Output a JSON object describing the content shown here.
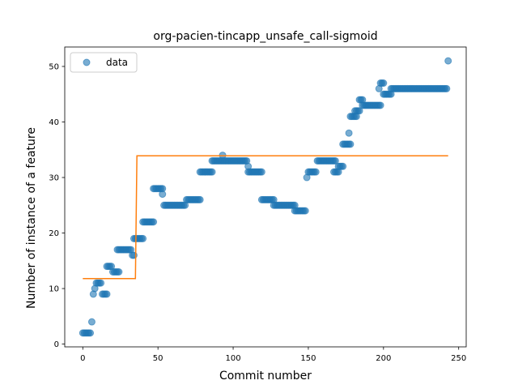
{
  "chart_data": {
    "type": "scatter",
    "title": "org-pacien-tincapp_unsafe_call-sigmoid",
    "xlabel": "Commit number",
    "ylabel": "Number of instance of a feature",
    "xlim": [
      -12,
      255
    ],
    "ylim": [
      -0.5,
      53.5
    ],
    "xticks": [
      0,
      50,
      100,
      150,
      200,
      250
    ],
    "yticks": [
      0,
      10,
      20,
      30,
      40,
      50
    ],
    "grid": false,
    "legend": {
      "position": "top-left",
      "entries": [
        "data"
      ]
    },
    "colors": {
      "data": "#1f77b4",
      "fit": "#ff7f0e"
    },
    "series": [
      {
        "name": "data",
        "kind": "scatter",
        "segments": [
          {
            "x_start": 0,
            "x_end": 5,
            "y": 2
          },
          {
            "x_start": 6,
            "x_end": 6,
            "y": 4
          },
          {
            "x_start": 7,
            "x_end": 7,
            "y": 9
          },
          {
            "x_start": 8,
            "x_end": 8,
            "y": 10
          },
          {
            "x_start": 9,
            "x_end": 12,
            "y": 11
          },
          {
            "x_start": 13,
            "x_end": 16,
            "y": 9
          },
          {
            "x_start": 16,
            "x_end": 19,
            "y": 14
          },
          {
            "x_start": 20,
            "x_end": 24,
            "y": 13
          },
          {
            "x_start": 23,
            "x_end": 32,
            "y": 17
          },
          {
            "x_start": 33,
            "x_end": 34,
            "y": 16
          },
          {
            "x_start": 34,
            "x_end": 40,
            "y": 19
          },
          {
            "x_start": 40,
            "x_end": 47,
            "y": 22
          },
          {
            "x_start": 47,
            "x_end": 53,
            "y": 28
          },
          {
            "x_start": 53,
            "x_end": 53,
            "y": 27
          },
          {
            "x_start": 54,
            "x_end": 68,
            "y": 25
          },
          {
            "x_start": 69,
            "x_end": 78,
            "y": 26
          },
          {
            "x_start": 78,
            "x_end": 86,
            "y": 31
          },
          {
            "x_start": 86,
            "x_end": 109,
            "y": 33
          },
          {
            "x_start": 93,
            "x_end": 93,
            "y": 34
          },
          {
            "x_start": 110,
            "x_end": 110,
            "y": 32
          },
          {
            "x_start": 110,
            "x_end": 119,
            "y": 31
          },
          {
            "x_start": 119,
            "x_end": 127,
            "y": 26
          },
          {
            "x_start": 127,
            "x_end": 141,
            "y": 25
          },
          {
            "x_start": 141,
            "x_end": 148,
            "y": 24
          },
          {
            "x_start": 149,
            "x_end": 149,
            "y": 30
          },
          {
            "x_start": 150,
            "x_end": 155,
            "y": 31
          },
          {
            "x_start": 156,
            "x_end": 168,
            "y": 33
          },
          {
            "x_start": 167,
            "x_end": 170,
            "y": 31
          },
          {
            "x_start": 170,
            "x_end": 173,
            "y": 32
          },
          {
            "x_start": 173,
            "x_end": 178,
            "y": 36
          },
          {
            "x_start": 177,
            "x_end": 177,
            "y": 38
          },
          {
            "x_start": 178,
            "x_end": 182,
            "y": 41
          },
          {
            "x_start": 181,
            "x_end": 184,
            "y": 42
          },
          {
            "x_start": 184,
            "x_end": 186,
            "y": 44
          },
          {
            "x_start": 186,
            "x_end": 198,
            "y": 43
          },
          {
            "x_start": 197,
            "x_end": 197,
            "y": 46
          },
          {
            "x_start": 198,
            "x_end": 200,
            "y": 47
          },
          {
            "x_start": 200,
            "x_end": 205,
            "y": 45
          },
          {
            "x_start": 205,
            "x_end": 242,
            "y": 46
          },
          {
            "x_start": 243,
            "x_end": 243,
            "y": 51
          }
        ]
      },
      {
        "name": "",
        "kind": "line",
        "x": [
          0,
          35,
          36,
          243
        ],
        "y": [
          11.8,
          11.8,
          33.9,
          33.9
        ]
      }
    ]
  }
}
